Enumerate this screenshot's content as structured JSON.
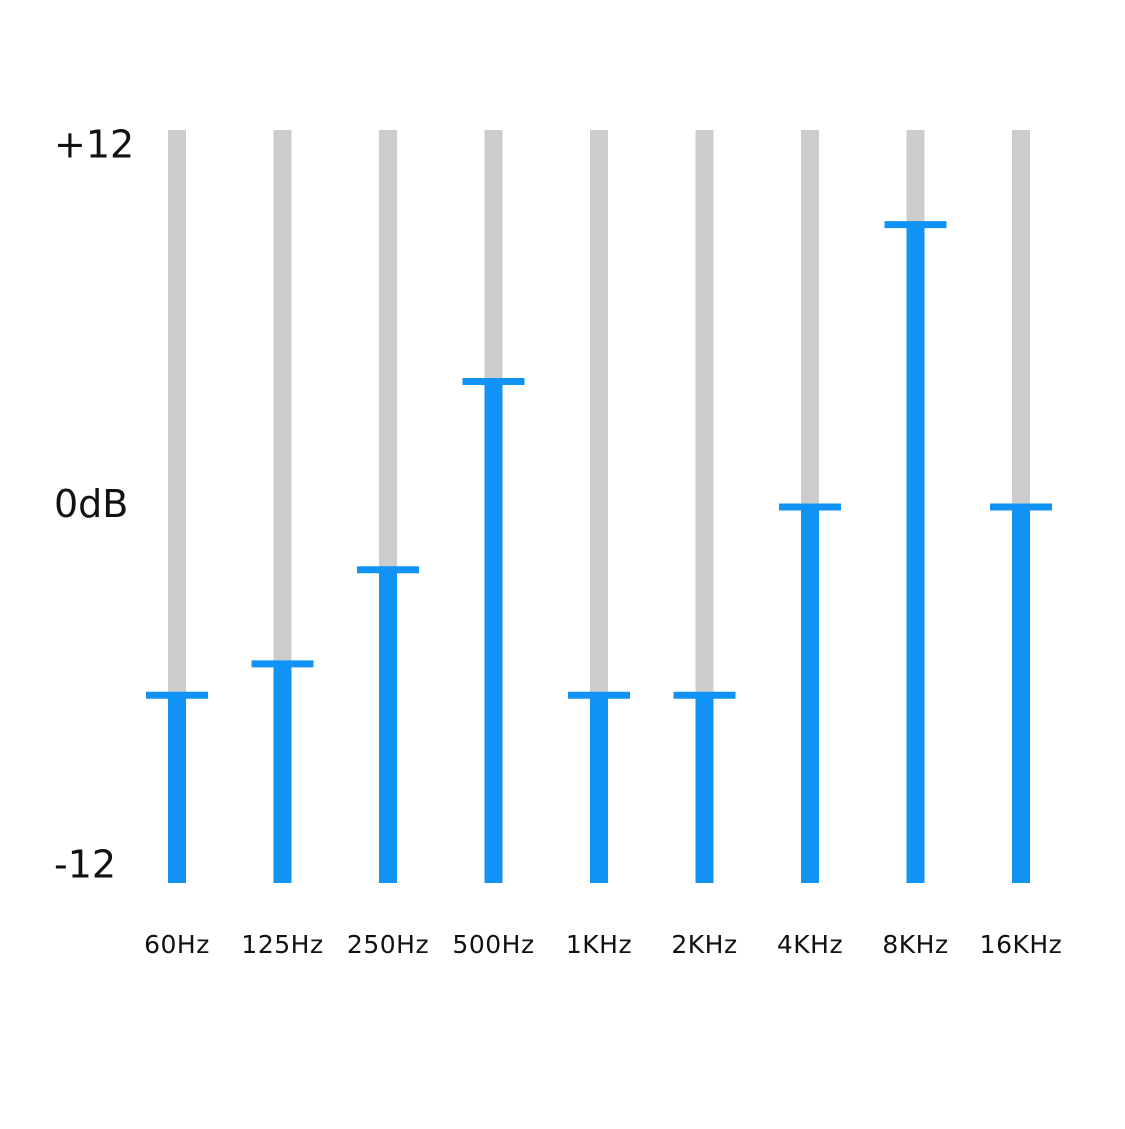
{
  "chart_data": {
    "type": "equalizer",
    "categories": [
      "60Hz",
      "125Hz",
      "250Hz",
      "500Hz",
      "1KHz",
      "2KHz",
      "4KHz",
      "8KHz",
      "16KHz"
    ],
    "values": [
      -6,
      -5,
      -2,
      4,
      -6,
      -6,
      0,
      9,
      0
    ],
    "color": "#1193f5",
    "track_color": "#cccccc",
    "ylim": [
      -12,
      12
    ],
    "yticks": [
      {
        "value": -12,
        "label": "-12"
      },
      {
        "value": 0,
        "label": "0dB"
      },
      {
        "value": 12,
        "label": "+12"
      }
    ],
    "grid": false
  }
}
